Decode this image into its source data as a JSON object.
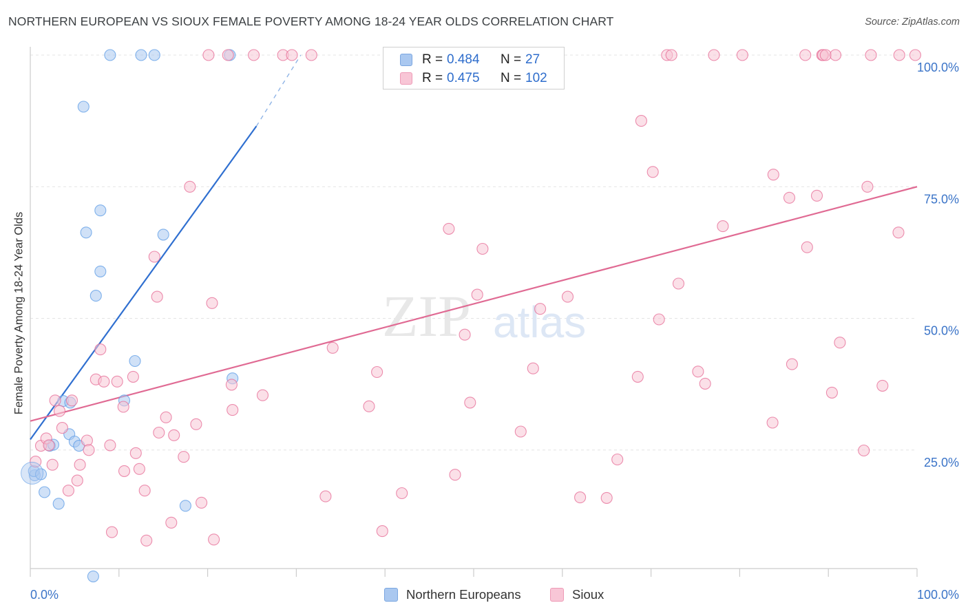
{
  "header": {
    "title": "NORTHERN EUROPEAN VS SIOUX FEMALE POVERTY AMONG 18-24 YEAR OLDS CORRELATION CHART",
    "source": "Source: ZipAtlas.com"
  },
  "watermark": {
    "zip": "ZIP",
    "atlas": "atlas"
  },
  "stats": [
    {
      "r_label": "R =",
      "r_value": "0.484",
      "n_label": "N =",
      "n_value": "27",
      "color": "#aac8f0",
      "border": "#7aa6e0"
    },
    {
      "r_label": "R =",
      "r_value": "0.475",
      "n_label": "N =",
      "n_value": "102",
      "color": "#f8c6d6",
      "border": "#ee9ab6"
    }
  ],
  "legend": [
    {
      "label": "Northern Europeans",
      "color": "#aac8f0",
      "border": "#7aa6e0"
    },
    {
      "label": "Sioux",
      "color": "#f8c6d6",
      "border": "#ee9ab6"
    }
  ],
  "chart_data": {
    "type": "scatter",
    "title": "NORTHERN EUROPEAN VS SIOUX FEMALE POVERTY AMONG 18-24 YEAR OLDS CORRELATION CHART",
    "xlabel": "",
    "ylabel": "Female Poverty Among 18-24 Year Olds",
    "xlim": [
      0,
      100
    ],
    "ylim": [
      0,
      100
    ],
    "x_tick_labels": [
      "0.0%",
      "100.0%"
    ],
    "y_tick_labels": [
      "25.0%",
      "50.0%",
      "75.0%",
      "100.0%"
    ],
    "y_ticks": [
      25,
      50,
      75,
      100
    ],
    "grid": "horizontal dashed",
    "legend_position": "bottom-center",
    "series": [
      {
        "name": "Northern Europeans",
        "color": "#5b9be6",
        "fill": "#aac8f0",
        "trend": {
          "x0": 0,
          "y0": 27,
          "x1": 25.5,
          "y1": 86.5,
          "dash_to_x": 30.5,
          "dash_to_y": 100
        },
        "points": [
          [
            0.5,
            20.2
          ],
          [
            0.4,
            21.0
          ],
          [
            1.2,
            20.4
          ],
          [
            1.6,
            17.0
          ],
          [
            2.2,
            25.8
          ],
          [
            2.6,
            26.0
          ],
          [
            3.2,
            14.8
          ],
          [
            3.7,
            34.3
          ],
          [
            4.4,
            28.0
          ],
          [
            4.5,
            34.0
          ],
          [
            5.0,
            26.6
          ],
          [
            5.5,
            25.8
          ],
          [
            6.0,
            90.2
          ],
          [
            6.3,
            66.3
          ],
          [
            7.1,
            1.0
          ],
          [
            7.4,
            54.3
          ],
          [
            7.9,
            58.9
          ],
          [
            7.9,
            70.5
          ],
          [
            9.0,
            100.0
          ],
          [
            10.6,
            34.4
          ],
          [
            11.8,
            41.9
          ],
          [
            12.5,
            100.0
          ],
          [
            14.0,
            100.0
          ],
          [
            15.0,
            65.9
          ],
          [
            17.5,
            14.4
          ],
          [
            22.5,
            100.0
          ],
          [
            22.8,
            38.6
          ]
        ]
      },
      {
        "name": "Sioux",
        "color": "#e56a94",
        "fill": "#f8c6d6",
        "trend": {
          "x0": 0,
          "y0": 30.5,
          "x1": 100,
          "y1": 75.0
        },
        "points": [
          [
            0.6,
            22.8
          ],
          [
            1.2,
            25.8
          ],
          [
            1.8,
            27.2
          ],
          [
            2.1,
            25.9
          ],
          [
            2.5,
            22.2
          ],
          [
            2.8,
            34.4
          ],
          [
            3.3,
            32.4
          ],
          [
            3.6,
            29.2
          ],
          [
            4.3,
            17.3
          ],
          [
            4.7,
            34.4
          ],
          [
            5.3,
            19.2
          ],
          [
            5.6,
            22.2
          ],
          [
            6.4,
            26.8
          ],
          [
            6.6,
            25.0
          ],
          [
            7.4,
            38.4
          ],
          [
            7.9,
            44.1
          ],
          [
            8.3,
            38.0
          ],
          [
            9.0,
            25.9
          ],
          [
            9.2,
            9.4
          ],
          [
            9.8,
            38.0
          ],
          [
            10.5,
            33.2
          ],
          [
            10.6,
            21.0
          ],
          [
            11.6,
            38.9
          ],
          [
            11.9,
            24.4
          ],
          [
            12.3,
            21.4
          ],
          [
            12.9,
            17.3
          ],
          [
            13.1,
            7.8
          ],
          [
            14.0,
            61.7
          ],
          [
            14.3,
            54.1
          ],
          [
            14.5,
            28.3
          ],
          [
            15.3,
            31.2
          ],
          [
            15.9,
            11.2
          ],
          [
            16.2,
            27.8
          ],
          [
            17.3,
            23.7
          ],
          [
            18.0,
            75.0
          ],
          [
            18.7,
            29.9
          ],
          [
            19.3,
            15.0
          ],
          [
            20.1,
            100.0
          ],
          [
            20.5,
            52.9
          ],
          [
            20.7,
            8.0
          ],
          [
            22.3,
            100.0
          ],
          [
            22.7,
            37.4
          ],
          [
            22.8,
            32.6
          ],
          [
            25.2,
            100.0
          ],
          [
            26.2,
            35.4
          ],
          [
            28.5,
            100.0
          ],
          [
            29.5,
            100.0
          ],
          [
            31.7,
            100.0
          ],
          [
            33.3,
            16.2
          ],
          [
            34.1,
            44.4
          ],
          [
            38.2,
            33.3
          ],
          [
            39.1,
            39.8
          ],
          [
            39.7,
            9.6
          ],
          [
            41.9,
            16.8
          ],
          [
            42.8,
            100.0
          ],
          [
            47.2,
            67.0
          ],
          [
            47.9,
            20.3
          ],
          [
            49.0,
            46.9
          ],
          [
            49.6,
            34.0
          ],
          [
            50.4,
            54.5
          ],
          [
            51.0,
            63.2
          ],
          [
            52.0,
            100.0
          ],
          [
            55.3,
            28.5
          ],
          [
            56.7,
            40.5
          ],
          [
            57.5,
            51.8
          ],
          [
            59.4,
            100.0
          ],
          [
            60.6,
            54.1
          ],
          [
            62.0,
            16.0
          ],
          [
            65.0,
            15.9
          ],
          [
            66.2,
            23.2
          ],
          [
            68.5,
            38.9
          ],
          [
            68.9,
            87.5
          ],
          [
            70.2,
            77.8
          ],
          [
            70.9,
            49.8
          ],
          [
            71.8,
            100.0
          ],
          [
            72.3,
            100.0
          ],
          [
            73.1,
            56.6
          ],
          [
            75.3,
            39.9
          ],
          [
            76.1,
            37.6
          ],
          [
            77.1,
            100.0
          ],
          [
            78.1,
            67.5
          ],
          [
            80.3,
            100.0
          ],
          [
            83.7,
            30.2
          ],
          [
            83.8,
            77.3
          ],
          [
            85.6,
            72.9
          ],
          [
            85.9,
            41.3
          ],
          [
            87.4,
            100.0
          ],
          [
            87.6,
            63.5
          ],
          [
            88.7,
            73.3
          ],
          [
            89.3,
            100.0
          ],
          [
            89.4,
            100.0
          ],
          [
            89.7,
            100.0
          ],
          [
            90.4,
            35.9
          ],
          [
            90.8,
            100.0
          ],
          [
            91.3,
            45.4
          ],
          [
            94.0,
            24.9
          ],
          [
            94.4,
            75.0
          ],
          [
            94.8,
            100.0
          ],
          [
            96.1,
            37.2
          ],
          [
            97.9,
            66.3
          ],
          [
            98.0,
            100.0
          ],
          [
            99.8,
            100.0
          ]
        ]
      }
    ]
  }
}
